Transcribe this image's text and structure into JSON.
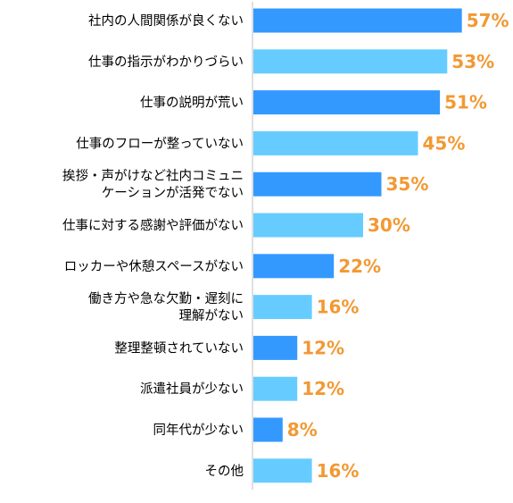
{
  "chart_data": {
    "type": "bar",
    "orientation": "horizontal",
    "categories": [
      "社内の人間関係が良くない",
      "仕事の指示がわかりづらい",
      "仕事の説明が荒い",
      "仕事のフローが整っていない",
      "挨拶・声がけなど社内コミュニケーションが活発でない",
      "仕事に対する感謝や評価がない",
      "ロッカーや休憩スペースがない",
      "働き方や急な欠勤・遅刻に理解がない",
      "整理整頓されていない",
      "派遣社員が少ない",
      "同年代が少ない",
      "その他"
    ],
    "category_label_lines": [
      [
        "社内の人間関係が良くない"
      ],
      [
        "仕事の指示がわかりづらい"
      ],
      [
        "仕事の説明が荒い"
      ],
      [
        "仕事のフローが整っていない"
      ],
      [
        "挨拶・声がけなど社内コミュニ",
        "ケーションが活発でない"
      ],
      [
        "仕事に対する感謝や評価がない"
      ],
      [
        "ロッカーや休憩スペースがない"
      ],
      [
        "働き方や急な欠勤・遅刻に",
        "理解がない"
      ],
      [
        "整理整頓されていない"
      ],
      [
        "派遣社員が少ない"
      ],
      [
        "同年代が少ない"
      ],
      [
        "その他"
      ]
    ],
    "values": [
      57,
      53,
      51,
      45,
      35,
      30,
      22,
      16,
      12,
      12,
      8,
      16
    ],
    "value_labels": [
      "57%",
      "53%",
      "51%",
      "45%",
      "35%",
      "30%",
      "22%",
      "16%",
      "12%",
      "12%",
      "8%",
      "16%"
    ],
    "xlim": [
      0,
      100
    ],
    "grid": false,
    "legend": "none",
    "colors": {
      "bar_dark": "#3399ff",
      "bar_light": "#66ccff",
      "value_label": "#f29933",
      "axis": "#bfbfbf",
      "category_text": "#000000"
    }
  }
}
